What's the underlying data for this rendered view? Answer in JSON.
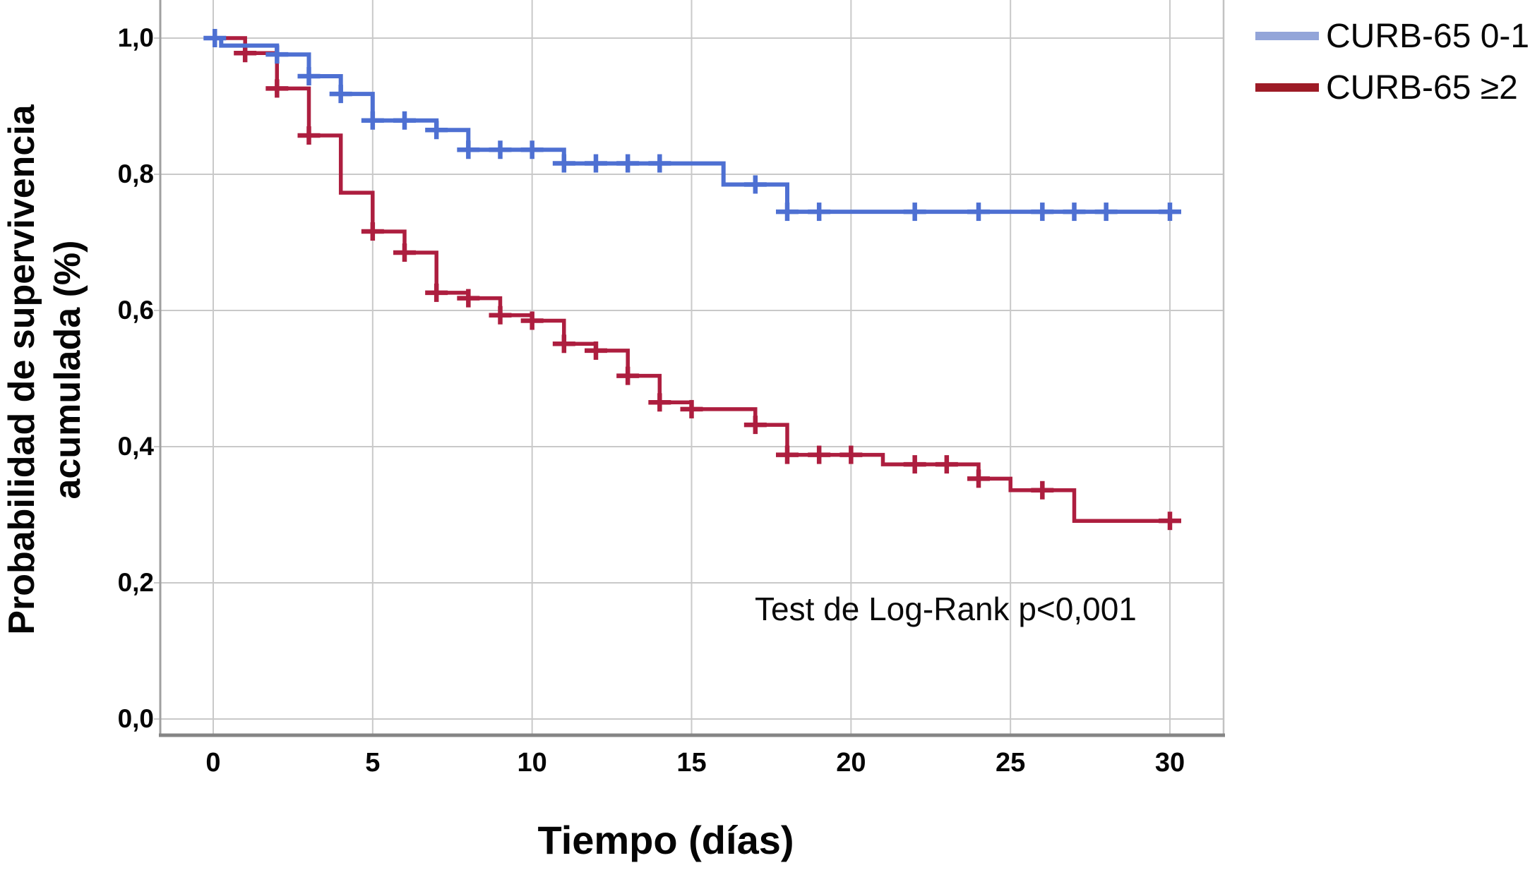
{
  "figure": {
    "kind": "kaplan-meier-survival-plot"
  },
  "axes": {
    "x": {
      "label": "Tiempo (días)",
      "range": [
        0,
        30
      ],
      "ticks": [
        {
          "value": 0,
          "label": "0"
        },
        {
          "value": 5,
          "label": "5"
        },
        {
          "value": 10,
          "label": "10"
        },
        {
          "value": 15,
          "label": "15"
        },
        {
          "value": 20,
          "label": "20"
        },
        {
          "value": 25,
          "label": "25"
        },
        {
          "value": 30,
          "label": "30"
        }
      ]
    },
    "y": {
      "label_line1": "Probabilidad de supervivencia",
      "label_line2": "acumulada (%)",
      "range": [
        0,
        1
      ],
      "ticks": [
        {
          "value": 1.0,
          "label": "1,0"
        },
        {
          "value": 0.8,
          "label": "0,8"
        },
        {
          "value": 0.6,
          "label": "0,6"
        },
        {
          "value": 0.4,
          "label": "0,4"
        },
        {
          "value": 0.2,
          "label": "0,2"
        },
        {
          "value": 0.0,
          "label": "0,0"
        }
      ]
    }
  },
  "annotation": {
    "text": "Test de Log-Rank p<0,001"
  },
  "legend": {
    "position": "top-right",
    "items": [
      {
        "label": "CURB-65 0-1",
        "color": "#93a5d9"
      },
      {
        "label": "CURB-65 ≥2",
        "color": "#9d1b26"
      }
    ]
  },
  "colors": {
    "grid": "#c9c9c9",
    "frame_left": "#a0a0a0",
    "frame_right": "#c2c2c2",
    "axis_bottom": "#858585",
    "text": "#050505"
  },
  "chart_data": {
    "type": "line",
    "subtype": "kaplan_meier_step",
    "title": "",
    "xlabel": "Tiempo (días)",
    "ylabel": "Probabilidad de supervivencia acumulada (%)",
    "xlim": [
      0,
      30
    ],
    "ylim": [
      0.0,
      1.0
    ],
    "grid": true,
    "legend_position": "top-right",
    "statistical_test": "Test de Log-Rank p<0,001",
    "series": [
      {
        "name": "CURB-65 0-1",
        "color": "#4e70d2",
        "line_width": 6,
        "start": [
          0,
          1.0
        ],
        "end_time": 30,
        "steps": [
          [
            0.25,
            0.989
          ],
          [
            2,
            0.976
          ],
          [
            3,
            0.944
          ],
          [
            4,
            0.918
          ],
          [
            5,
            0.879
          ],
          [
            7,
            0.865
          ],
          [
            8,
            0.836
          ],
          [
            11,
            0.816
          ],
          [
            16,
            0.785
          ],
          [
            18,
            0.745
          ]
        ],
        "censor_marks": [
          [
            0.05,
            1.0
          ],
          [
            2,
            0.976
          ],
          [
            3,
            0.944
          ],
          [
            4,
            0.918
          ],
          [
            5,
            0.879
          ],
          [
            6,
            0.879
          ],
          [
            7,
            0.865
          ],
          [
            8,
            0.836
          ],
          [
            9,
            0.836
          ],
          [
            10,
            0.836
          ],
          [
            11,
            0.816
          ],
          [
            12,
            0.816
          ],
          [
            13,
            0.816
          ],
          [
            14,
            0.816
          ],
          [
            17,
            0.785
          ],
          [
            18,
            0.745
          ],
          [
            19,
            0.745
          ],
          [
            22,
            0.745
          ],
          [
            24,
            0.745
          ],
          [
            26,
            0.745
          ],
          [
            27,
            0.745
          ],
          [
            28,
            0.745
          ],
          [
            30,
            0.745
          ]
        ]
      },
      {
        "name": "CURB-65 ≥2",
        "color": "#ad1e3f",
        "line_width": 5.5,
        "start": [
          0,
          1.0
        ],
        "end_time": 30,
        "steps": [
          [
            1,
            0.978
          ],
          [
            2,
            0.926
          ],
          [
            3,
            0.857
          ],
          [
            4,
            0.773
          ],
          [
            5,
            0.716
          ],
          [
            6,
            0.685
          ],
          [
            7,
            0.626
          ],
          [
            8,
            0.618
          ],
          [
            9,
            0.593
          ],
          [
            10,
            0.585
          ],
          [
            11,
            0.551
          ],
          [
            12,
            0.541
          ],
          [
            13,
            0.504
          ],
          [
            14,
            0.465
          ],
          [
            15,
            0.455
          ],
          [
            17,
            0.432
          ],
          [
            18,
            0.388
          ],
          [
            21,
            0.374
          ],
          [
            24,
            0.353
          ],
          [
            25,
            0.336
          ],
          [
            27,
            0.291
          ]
        ],
        "censor_marks": [
          [
            1,
            0.978
          ],
          [
            2,
            0.926
          ],
          [
            3,
            0.857
          ],
          [
            5,
            0.716
          ],
          [
            6,
            0.685
          ],
          [
            7,
            0.626
          ],
          [
            8,
            0.618
          ],
          [
            9,
            0.593
          ],
          [
            10,
            0.585
          ],
          [
            11,
            0.551
          ],
          [
            12,
            0.541
          ],
          [
            13,
            0.504
          ],
          [
            14,
            0.465
          ],
          [
            15,
            0.455
          ],
          [
            17,
            0.432
          ],
          [
            18,
            0.388
          ],
          [
            19,
            0.388
          ],
          [
            20,
            0.388
          ],
          [
            22,
            0.374
          ],
          [
            23,
            0.374
          ],
          [
            24,
            0.353
          ],
          [
            26,
            0.336
          ],
          [
            30,
            0.291
          ]
        ]
      }
    ]
  }
}
